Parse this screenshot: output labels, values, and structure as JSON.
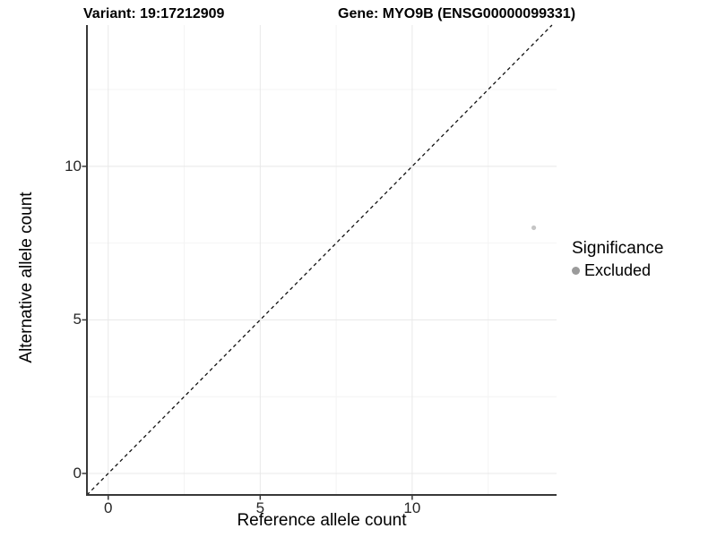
{
  "chart_data": {
    "type": "scatter",
    "title_left": "Variant: 19:17212909",
    "title_right": "Gene: MYO9B (ENSG00000099331)",
    "xlabel": "Reference allele count",
    "ylabel": "Alternative allele count",
    "xlim": [
      -0.7,
      14.75
    ],
    "ylim": [
      -0.7,
      14.6
    ],
    "x_breaks": [
      0,
      5,
      10
    ],
    "y_breaks": [
      0,
      5,
      10
    ],
    "x_minor_breaks": [
      2.5,
      7.5,
      12.5
    ],
    "y_minor_breaks": [
      2.5,
      7.5,
      12.5
    ],
    "grid": "major and minor gridlines, very light gray on white panel",
    "identity_line": {
      "show": true,
      "style": "dashed",
      "color": "#111111"
    },
    "series": [
      {
        "name": "Excluded",
        "color": "#c5c5c5",
        "point_radius": 2.6,
        "points": [
          {
            "x": 14,
            "y": 8
          }
        ]
      }
    ],
    "legend": {
      "title": "Significance",
      "position": "right",
      "items": [
        {
          "label": "Excluded",
          "color": "#9b9b9b"
        }
      ]
    },
    "style": {
      "axis_color": "#383838",
      "major_grid_color": "#e8e8e8",
      "minor_grid_color": "#f4f4f4",
      "tick_text_color": "#262626",
      "text_color": "#000000",
      "background": "#ffffff"
    }
  }
}
